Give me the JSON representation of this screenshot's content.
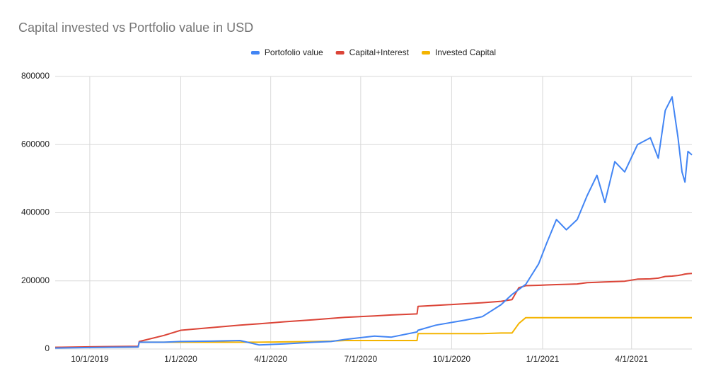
{
  "chart_data": {
    "type": "line",
    "title": "Capital invested vs Portfolio value in USD",
    "x": [
      "2019-08-27",
      "2019-09-20",
      "2019-10-15",
      "2019-11-19",
      "2019-11-20",
      "2019-12-15",
      "2020-01-01",
      "2020-02-01",
      "2020-03-01",
      "2020-03-20",
      "2020-04-15",
      "2020-05-15",
      "2020-06-01",
      "2020-06-15",
      "2020-07-15",
      "2020-08-01",
      "2020-08-27",
      "2020-08-28",
      "2020-09-15",
      "2020-10-15",
      "2020-11-01",
      "2020-11-20",
      "2020-12-01",
      "2020-12-08",
      "2020-12-15",
      "2020-12-28",
      "2021-01-05",
      "2021-01-15",
      "2021-01-25",
      "2021-02-05",
      "2021-02-15",
      "2021-02-25",
      "2021-03-05",
      "2021-03-15",
      "2021-03-25",
      "2021-04-07",
      "2021-04-20",
      "2021-04-28",
      "2021-05-05",
      "2021-05-12",
      "2021-05-18",
      "2021-05-22",
      "2021-05-25",
      "2021-05-28",
      "2021-06-01"
    ],
    "series": [
      {
        "name": "Portofolio value",
        "color": "#4285f4",
        "values": [
          3000,
          4000,
          5000,
          6000,
          20000,
          20000,
          22000,
          23000,
          25000,
          12000,
          15000,
          20000,
          22000,
          28000,
          38000,
          35000,
          50000,
          55000,
          70000,
          85000,
          95000,
          130000,
          160000,
          175000,
          190000,
          250000,
          310000,
          380000,
          350000,
          380000,
          450000,
          510000,
          430000,
          550000,
          520000,
          600000,
          620000,
          560000,
          700000,
          740000,
          620000,
          520000,
          490000,
          580000,
          570000
        ]
      },
      {
        "name": "Capital+Interest",
        "color": "#db4437",
        "values": [
          5000,
          6000,
          7000,
          8000,
          22000,
          40000,
          55000,
          63000,
          70000,
          74000,
          80000,
          86000,
          90000,
          93000,
          97000,
          100000,
          103000,
          125000,
          128000,
          133000,
          136000,
          140000,
          145000,
          180000,
          186000,
          187000,
          188000,
          189000,
          190000,
          191000,
          195000,
          196000,
          197000,
          198000,
          199000,
          205000,
          206000,
          208000,
          213000,
          214000,
          216000,
          218000,
          220000,
          221000,
          222000
        ]
      },
      {
        "name": "Invested Capital",
        "color": "#f4b400",
        "values": [
          5000,
          5000,
          5000,
          6000,
          20000,
          20000,
          20000,
          20000,
          20000,
          20000,
          21000,
          22000,
          23000,
          25000,
          25000,
          25000,
          25000,
          45000,
          45000,
          45000,
          45000,
          47000,
          47000,
          75000,
          92000,
          92000,
          92000,
          92000,
          92000,
          92000,
          92000,
          92000,
          92000,
          92000,
          92000,
          92000,
          92000,
          92000,
          92000,
          92000,
          92000,
          92000,
          92000,
          92000,
          92000
        ]
      }
    ],
    "xlim": [
      "2019-08-27",
      "2021-06-01"
    ],
    "xticks": [
      {
        "value": "2019-10-01",
        "label": "10/1/2019"
      },
      {
        "value": "2020-01-01",
        "label": "1/1/2020"
      },
      {
        "value": "2020-04-01",
        "label": "4/1/2020"
      },
      {
        "value": "2020-07-01",
        "label": "7/1/2020"
      },
      {
        "value": "2020-10-01",
        "label": "10/1/2020"
      },
      {
        "value": "2021-01-01",
        "label": "1/1/2021"
      },
      {
        "value": "2021-04-01",
        "label": "4/1/2021"
      }
    ],
    "ylim": [
      0,
      800000
    ],
    "yticks": [
      0,
      200000,
      400000,
      600000,
      800000
    ],
    "grid": true,
    "legend": "top"
  }
}
